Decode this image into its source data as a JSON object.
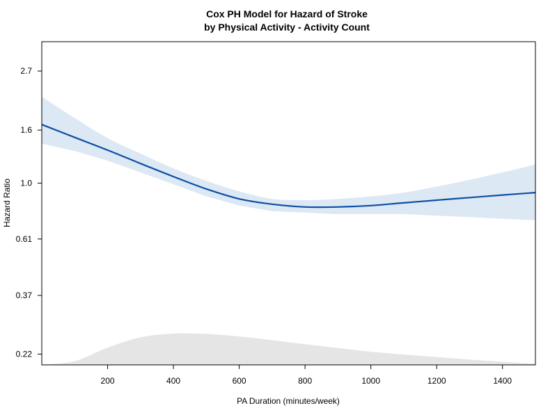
{
  "chart_data": {
    "type": "line",
    "title": "Cox PH Model for Hazard of Stroke",
    "subtitle": "by Physical Activity - Activity Count",
    "xlabel": "PA Duration (minutes/week)",
    "ylabel": "Hazard Ratio",
    "xlim": [
      0,
      1500
    ],
    "ylim": [
      0.2,
      3.5
    ],
    "y_scale": "log",
    "x_ticks": [
      200,
      400,
      600,
      800,
      1000,
      1200,
      1400
    ],
    "x_tick_labels": [
      "200",
      "400",
      "600",
      "800",
      "1000",
      "1200",
      "1400"
    ],
    "y_ticks": [
      0.22,
      0.37,
      0.61,
      1.0,
      1.6,
      2.7
    ],
    "y_tick_labels": [
      "0.22",
      "0.37",
      "0.61",
      "1.0",
      "1.6",
      "2.7"
    ],
    "grid": false,
    "series": [
      {
        "x": [
          0,
          100,
          200,
          300,
          400,
          500,
          600,
          700,
          800,
          900,
          1000,
          1100,
          1200,
          1300,
          1400,
          1500
        ],
        "y": [
          1.68,
          1.5,
          1.34,
          1.19,
          1.06,
          0.95,
          0.87,
          0.83,
          0.81,
          0.81,
          0.82,
          0.84,
          0.86,
          0.88,
          0.9,
          0.92
        ],
        "ci_lower": [
          1.42,
          1.33,
          1.22,
          1.1,
          0.99,
          0.89,
          0.82,
          0.78,
          0.77,
          0.76,
          0.76,
          0.76,
          0.75,
          0.74,
          0.73,
          0.72
        ],
        "ci_upper": [
          2.15,
          1.78,
          1.49,
          1.3,
          1.14,
          1.02,
          0.93,
          0.87,
          0.86,
          0.87,
          0.89,
          0.92,
          0.97,
          1.03,
          1.1,
          1.18
        ]
      }
    ],
    "density": {
      "x": [
        0,
        100,
        200,
        300,
        400,
        500,
        600,
        700,
        800,
        900,
        1000,
        1100,
        1200,
        1300,
        1400,
        1500
      ],
      "relative_height": [
        0.01,
        0.12,
        0.55,
        0.88,
        1.0,
        0.99,
        0.91,
        0.79,
        0.66,
        0.54,
        0.42,
        0.33,
        0.25,
        0.17,
        0.1,
        0.04
      ]
    },
    "colors": {
      "line": "#0a4fa3",
      "ci_band": "#dde8f5",
      "density": "#e5e5e5"
    }
  }
}
